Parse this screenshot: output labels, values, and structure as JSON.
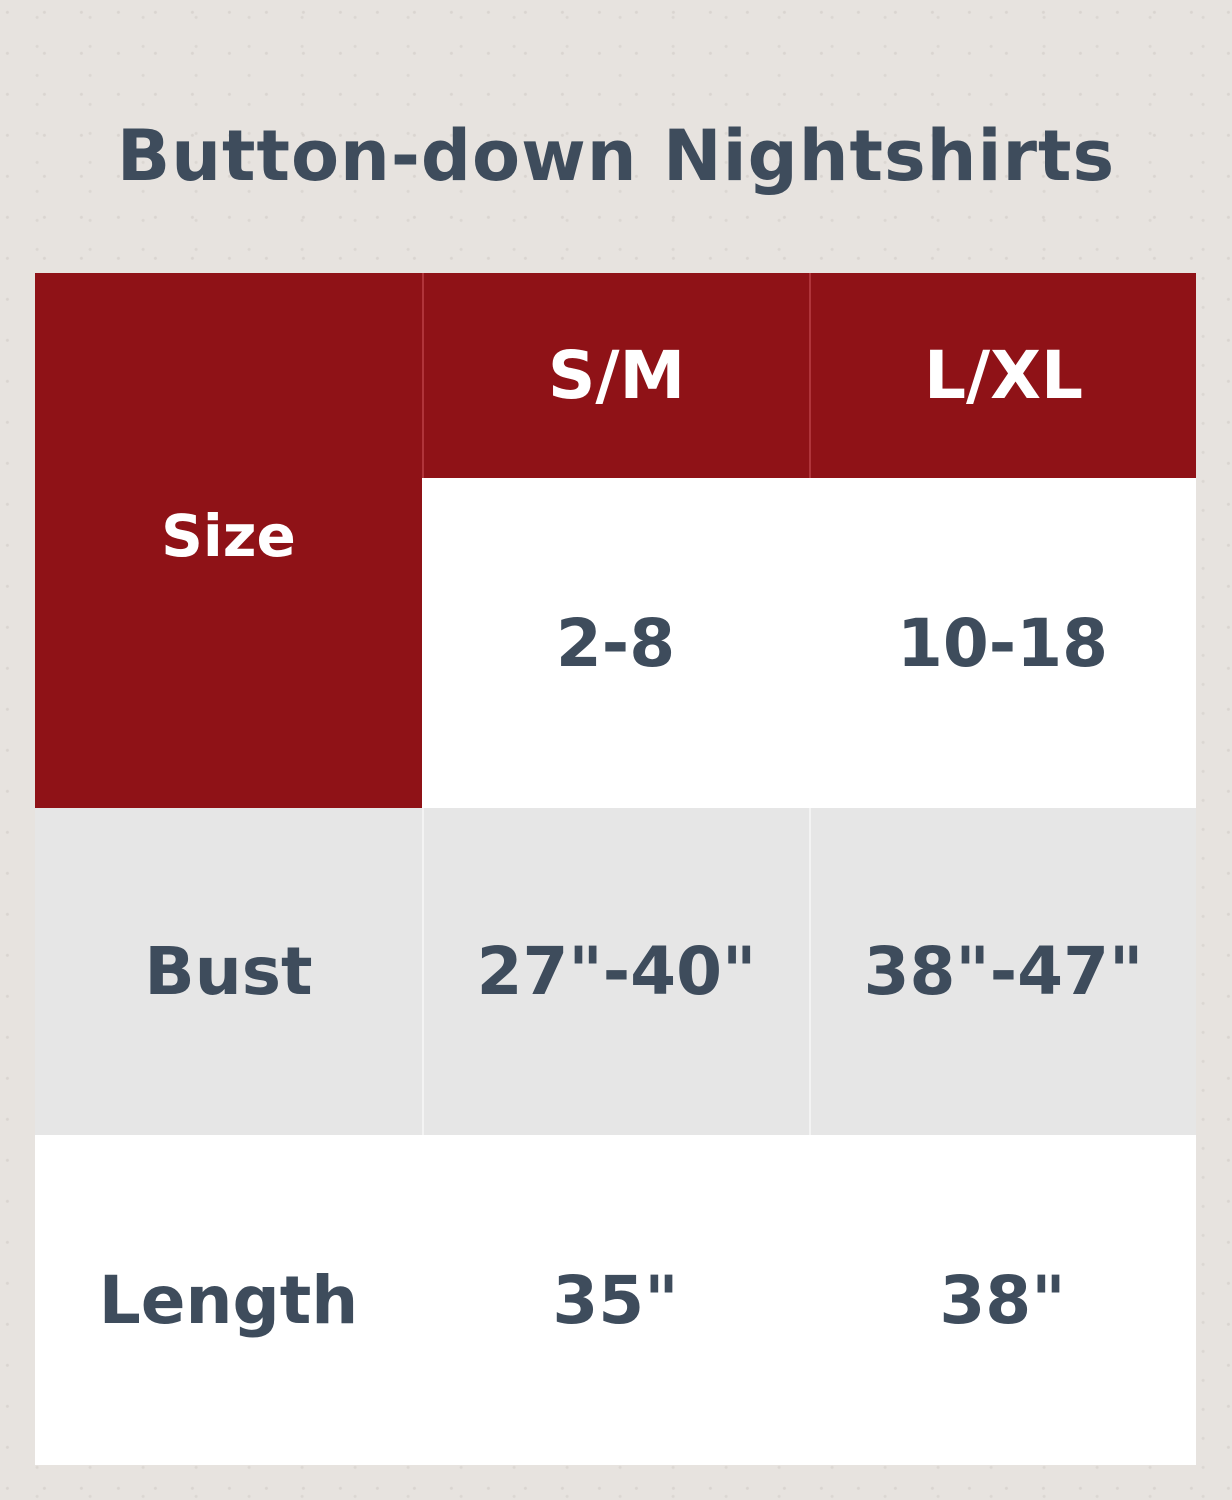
{
  "title": "Button-down Nightshirts",
  "colors": {
    "header_red": "#8f1217",
    "text": "#3e4c5c",
    "row_gray": "#e6e6e6"
  },
  "table": {
    "size_label": "Size",
    "columns": [
      "S/M",
      "L/XL"
    ],
    "size_values": [
      "2-8",
      "10-18"
    ],
    "rows": [
      {
        "label": "Bust",
        "values": [
          "27\"-40\"",
          "38\"-47\""
        ]
      },
      {
        "label": "Length",
        "values": [
          "35\"",
          "38\""
        ]
      }
    ]
  }
}
